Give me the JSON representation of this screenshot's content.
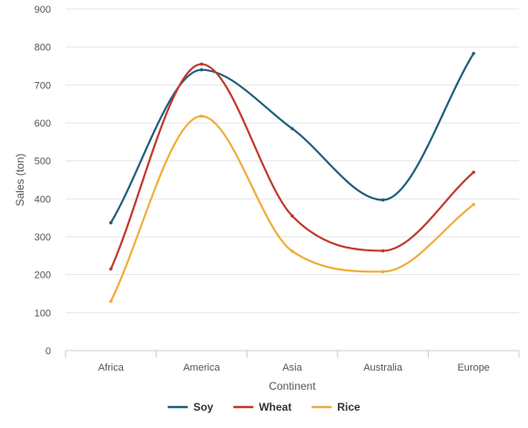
{
  "chart_data": {
    "type": "line",
    "smooth": true,
    "categories": [
      "Africa",
      "America",
      "Asia",
      "Australia",
      "Europe"
    ],
    "series": [
      {
        "name": "Soy",
        "color": "#1f5f7a",
        "values": [
          337,
          740,
          585,
          397,
          783
        ]
      },
      {
        "name": "Wheat",
        "color": "#c0392b",
        "values": [
          215,
          755,
          355,
          263,
          470
        ]
      },
      {
        "name": "Rice",
        "color": "#f0ad3a",
        "values": [
          130,
          618,
          262,
          208,
          385
        ]
      }
    ],
    "title": "",
    "xlabel": "Continent",
    "ylabel": "Sales (ton)",
    "ylim": [
      0,
      900
    ],
    "yticks": [
      0,
      100,
      200,
      300,
      400,
      500,
      600,
      700,
      800,
      900
    ],
    "grid": true,
    "legend_position": "bottom"
  }
}
